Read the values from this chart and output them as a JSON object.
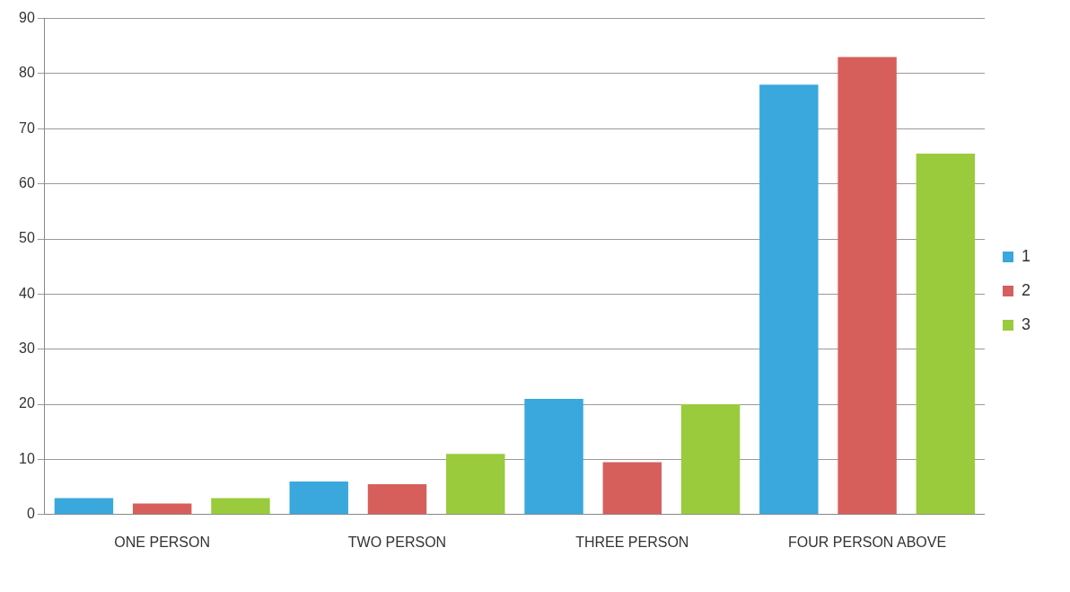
{
  "chart_data": {
    "type": "bar",
    "categories": [
      "ONE PERSON",
      "TWO PERSON",
      "THREE PERSON",
      "FOUR PERSON ABOVE"
    ],
    "series": [
      {
        "name": "1",
        "color": "#3aa8dc",
        "values": [
          3,
          6,
          21,
          78
        ]
      },
      {
        "name": "2",
        "color": "#d65f5c",
        "values": [
          2,
          5.5,
          9.5,
          83
        ]
      },
      {
        "name": "3",
        "color": "#9acb3c",
        "values": [
          3,
          11,
          20,
          65.5
        ]
      }
    ],
    "ylim": [
      0,
      90
    ],
    "yticks": [
      0,
      10,
      20,
      30,
      40,
      50,
      60,
      70,
      80,
      90
    ],
    "grid": "y",
    "legend": "right"
  }
}
